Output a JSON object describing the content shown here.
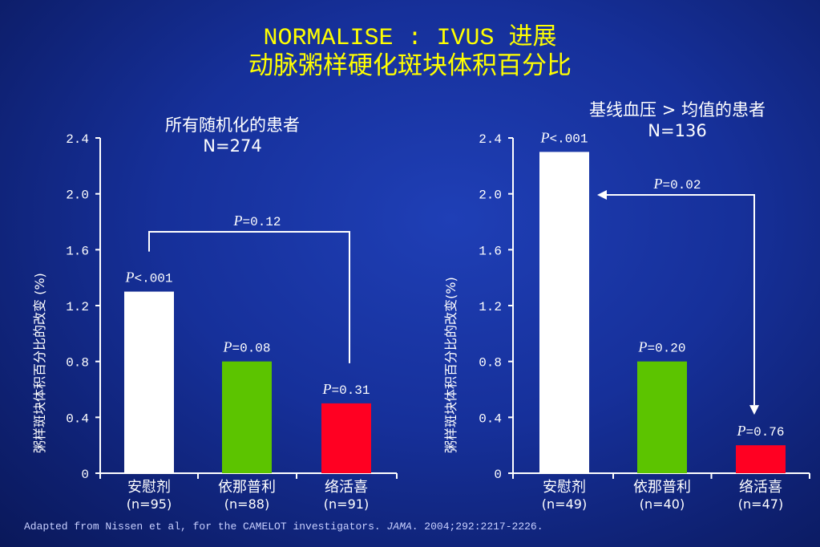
{
  "title_line1": "NORMALISE : IVUS 进展",
  "title_line2": "动脉粥样硬化斑块体积百分比",
  "footer": {
    "prefix": "Adapted from Nissen et al, for the CAMELOT investigators. ",
    "journal": "JAMA",
    "suffix": ". 2004;292:2217-2226."
  },
  "colors": {
    "title": "#ffff00",
    "placebo": "#ffffff",
    "enalapril": "#5cc400",
    "amlodipine": "#ff0022"
  },
  "chart_data": [
    {
      "type": "bar",
      "subtitle": "所有随机化的患者",
      "n_label": "N=274",
      "ylabel": "粥样斑块体积百分比的改变 (%)",
      "ylim": [
        0,
        2.4
      ],
      "yticks": [
        "0",
        "0.4",
        "0.8",
        "1.2",
        "1.6",
        "2.0",
        "2.4"
      ],
      "categories": [
        "安慰剂",
        "依那普利",
        "络活喜"
      ],
      "n_counts": [
        "(n=95)",
        "(n=88)",
        "(n=91)"
      ],
      "values": [
        1.3,
        0.8,
        0.5
      ],
      "bar_colors": [
        "#ffffff",
        "#5cc400",
        "#ff0022"
      ],
      "bar_labels": [
        {
          "p": "P",
          "rest": "<.001"
        },
        {
          "p": "P",
          "rest": "=0.08"
        },
        {
          "p": "P",
          "rest": "=0.31"
        }
      ],
      "comparison": {
        "p": "P",
        "rest": "=0.12",
        "from": 0,
        "to": 2,
        "style": "bracket"
      }
    },
    {
      "type": "bar",
      "subtitle": "基线血压 > 均值的患者",
      "n_label": "N=136",
      "ylabel": "粥样斑块体积百分比的改变(%)",
      "ylim": [
        0,
        2.4
      ],
      "yticks": [
        "0",
        "0.4",
        "0.8",
        "1.2",
        "1.6",
        "2.0",
        "2.4"
      ],
      "categories": [
        "安慰剂",
        "依那普利",
        "络活喜"
      ],
      "n_counts": [
        "(n=49)",
        "(n=40)",
        "(n=47)"
      ],
      "values": [
        2.3,
        0.8,
        0.2
      ],
      "bar_colors": [
        "#ffffff",
        "#5cc400",
        "#ff0022"
      ],
      "bar_labels": [
        {
          "p": "P",
          "rest": "<.001"
        },
        {
          "p": "P",
          "rest": "=0.20"
        },
        {
          "p": "P",
          "rest": "=0.76"
        }
      ],
      "comparison": {
        "p": "P",
        "rest": "=0.02",
        "from": 0,
        "to": 2,
        "style": "arrows"
      }
    }
  ]
}
